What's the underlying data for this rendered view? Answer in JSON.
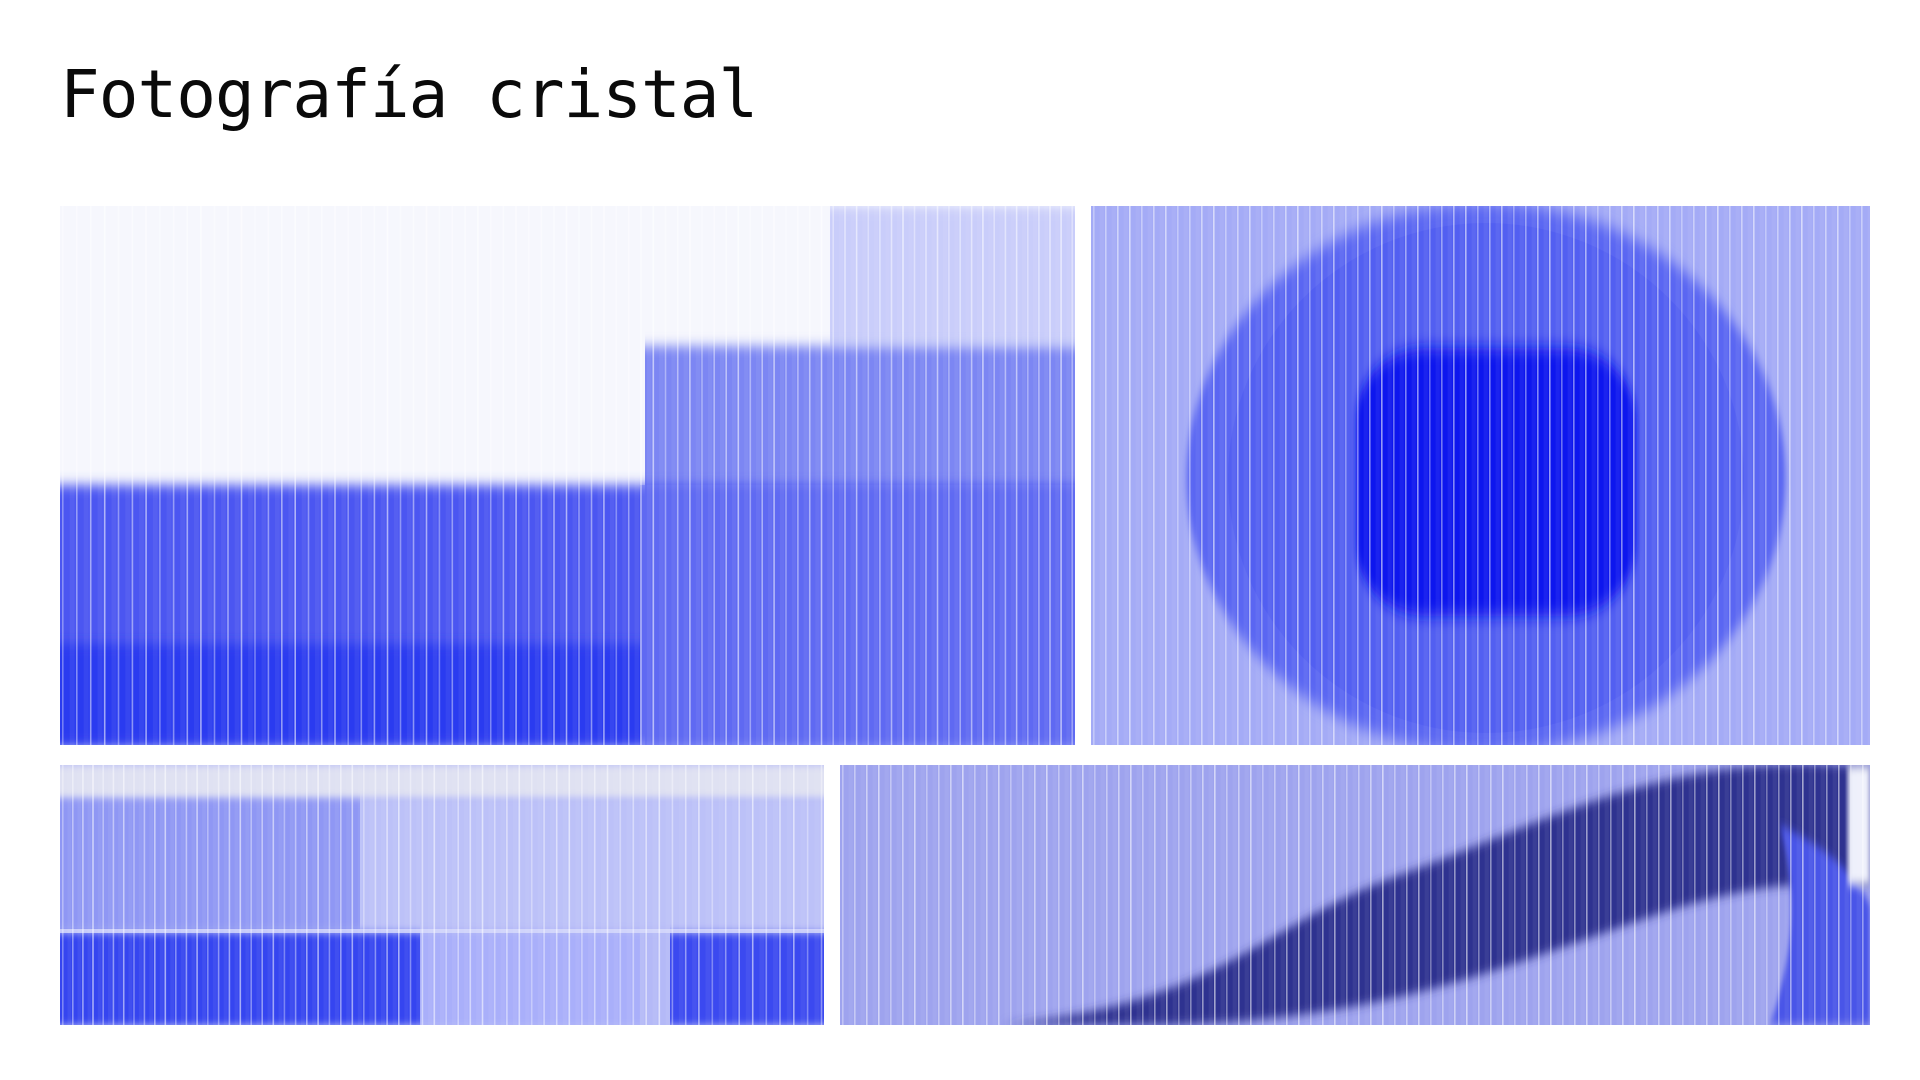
{
  "header": {
    "title": "Fotografía cristal"
  },
  "colors": {
    "background": "#ffffff",
    "title": "#0a0a0a",
    "blue_bright": "#2a3af0",
    "blue_core": "#0a14ee",
    "blue_mid": "#5a66f2",
    "blue_light": "#a4abf6",
    "blue_pale": "#c9cdfa",
    "navy": "#2e3390",
    "white_haze": "#f6f7fd"
  },
  "gallery": {
    "images": [
      {
        "name": "glass-photo-steps",
        "effect": "fluted-glass"
      },
      {
        "name": "glass-photo-circle",
        "effect": "fluted-glass"
      },
      {
        "name": "glass-photo-bands",
        "effect": "fluted-glass"
      },
      {
        "name": "glass-photo-wave",
        "effect": "fluted-glass"
      }
    ]
  }
}
